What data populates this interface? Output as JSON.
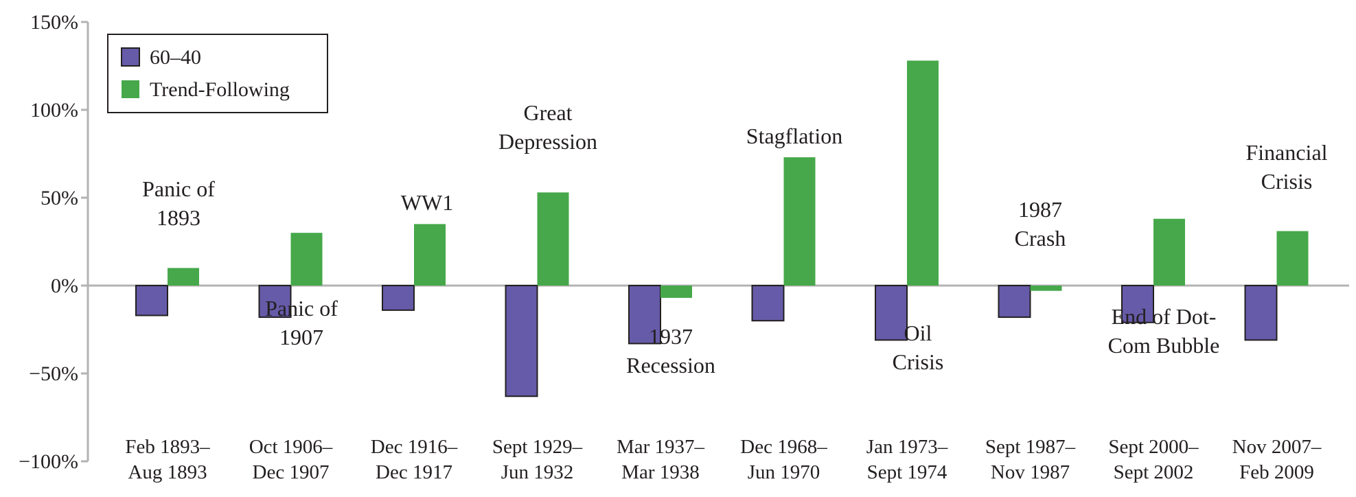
{
  "chart_data": {
    "type": "bar",
    "title": "",
    "xlabel": "",
    "ylabel": "",
    "ylim": [
      -100,
      150
    ],
    "y_ticks": [
      "150%",
      "100%",
      "50%",
      "0%",
      "−50%",
      "−100%"
    ],
    "y_tick_values": [
      150,
      100,
      50,
      0,
      -50,
      -100
    ],
    "categories": [
      [
        "Feb 1893–",
        "Aug 1893"
      ],
      [
        "Oct 1906–",
        "Dec 1907"
      ],
      [
        "Dec 1916–",
        "Dec 1917"
      ],
      [
        "Sept 1929–",
        "Jun 1932"
      ],
      [
        "Mar 1937–",
        "Mar 1938"
      ],
      [
        "Dec 1968–",
        "Jun 1970"
      ],
      [
        "Jan 1973–",
        "Sept 1974"
      ],
      [
        "Sept 1987–",
        "Nov 1987"
      ],
      [
        "Sept 2000–",
        "Sept 2002"
      ],
      [
        "Nov 2007–",
        "Feb 2009"
      ]
    ],
    "series": [
      {
        "name": "60–40",
        "color": "#665ba8",
        "values": [
          -17,
          -18,
          -14,
          -63,
          -33,
          -20,
          -31,
          -18,
          -21,
          -31
        ]
      },
      {
        "name": "Trend-Following",
        "color": "#46a84a",
        "values": [
          10,
          30,
          35,
          53,
          -7,
          73,
          128,
          -3,
          38,
          31
        ]
      }
    ],
    "annotations": [
      {
        "lines": [
          "Panic of",
          "1893"
        ],
        "category": 0,
        "at": 0.0
      },
      {
        "lines": [
          "Panic of",
          "1907"
        ],
        "category": 1,
        "at": 0.0
      },
      {
        "lines": [
          "WW1"
        ],
        "category": 2,
        "at": 0.0
      },
      {
        "lines": [
          "Great",
          "Depression"
        ],
        "category": 3,
        "at": 0.0
      },
      {
        "lines": [
          "1937",
          "Recession"
        ],
        "category": 4,
        "at": 0.0
      },
      {
        "lines": [
          "Stagflation"
        ],
        "category": 5,
        "at": 0.0
      },
      {
        "lines": [
          "Oil",
          "Crisis"
        ],
        "category": 6,
        "at": 0.0
      },
      {
        "lines": [
          "1987",
          "Crash"
        ],
        "category": 7,
        "at": 0.0
      },
      {
        "lines": [
          "End of Dot-",
          "Com Bubble"
        ],
        "category": 8,
        "at": 0.0
      },
      {
        "lines": [
          "Financial",
          "Crisis"
        ],
        "category": 9,
        "at": 0.0
      }
    ],
    "legend": "top-left",
    "grid": false
  }
}
